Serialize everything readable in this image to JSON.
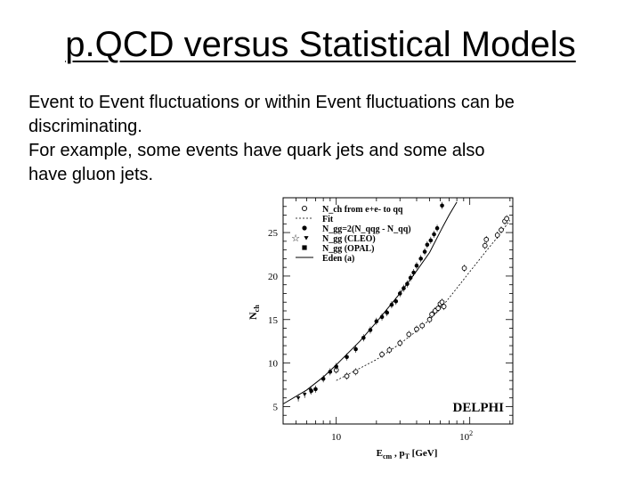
{
  "slide": {
    "title": "p.QCD versus Statistical Models",
    "bullets": [
      "Event to Event fluctuations or within Event fluctuations can be",
      "discriminating.",
      "For example, some events have quark jets and some also",
      "have gluon jets."
    ]
  },
  "chart_data": {
    "type": "scatter",
    "xlabel": "E_cm , p_T [GeV]",
    "ylabel": "N_ch",
    "xscale": "log",
    "xlim": [
      4,
      210
    ],
    "ylim": [
      3,
      29
    ],
    "x_ticks": [
      {
        "value": 10,
        "label": "10"
      }
    ],
    "x_tick_100": {
      "base": "10",
      "exp": "2"
    },
    "y_ticks": [
      {
        "value": 5,
        "label": "5"
      },
      {
        "value": 10,
        "label": "10"
      },
      {
        "value": 15,
        "label": "15"
      },
      {
        "value": 20,
        "label": "20"
      },
      {
        "value": 25,
        "label": "25"
      }
    ],
    "watermark": "DELPHI",
    "legend_position": "top-left",
    "legend": [
      {
        "marker": "open-circle",
        "label": "N_ch from e+e- to qq"
      },
      {
        "marker": "dashed",
        "label": "Fit"
      },
      {
        "marker": "filled-circle",
        "label": "N_gg=2(N_qqg - N_qq)"
      },
      {
        "marker": "star-triangle",
        "label": "N_gg (CLEO)"
      },
      {
        "marker": "filled-square",
        "label": "N_gg (OPAL)"
      },
      {
        "marker": "solid",
        "label": "Eden (a)"
      }
    ],
    "series": [
      {
        "marker": "open-circle",
        "points": [
          [
            10,
            9.2
          ],
          [
            12,
            8.5
          ],
          [
            14,
            9.0
          ],
          [
            22,
            11.0
          ],
          [
            25,
            11.5
          ],
          [
            30,
            12.3
          ],
          [
            35,
            13.3
          ],
          [
            40,
            13.9
          ],
          [
            44,
            14.3
          ],
          [
            50,
            15.0
          ],
          [
            52,
            15.6
          ],
          [
            55,
            16.0
          ],
          [
            58,
            16.3
          ],
          [
            60,
            16.8
          ],
          [
            62,
            17.0
          ],
          [
            64,
            16.5
          ],
          [
            91,
            20.9
          ],
          [
            130,
            23.5
          ],
          [
            133,
            24.2
          ],
          [
            161,
            24.7
          ],
          [
            172,
            25.3
          ],
          [
            183,
            26.3
          ],
          [
            189,
            26.6
          ]
        ]
      },
      {
        "marker": "filled-circle",
        "points": [
          [
            6.5,
            6.8
          ],
          [
            7,
            7.0
          ],
          [
            8,
            8.2
          ],
          [
            9,
            9.0
          ],
          [
            10,
            9.6
          ],
          [
            12,
            10.7
          ],
          [
            14,
            11.6
          ],
          [
            16,
            12.9
          ],
          [
            18,
            13.8
          ],
          [
            20,
            14.8
          ],
          [
            22,
            15.3
          ],
          [
            24,
            15.8
          ],
          [
            26,
            16.7
          ],
          [
            28,
            17.1
          ],
          [
            30,
            18.0
          ],
          [
            32,
            18.6
          ],
          [
            34,
            19.1
          ],
          [
            36,
            19.8
          ],
          [
            38,
            20.4
          ],
          [
            40,
            21.2
          ],
          [
            43,
            22.0
          ],
          [
            46,
            22.8
          ],
          [
            48,
            23.6
          ],
          [
            51,
            24.1
          ],
          [
            54,
            24.8
          ],
          [
            57,
            25.5
          ],
          [
            62,
            28.1
          ]
        ]
      },
      {
        "marker": "filled-triangle",
        "points": [
          [
            5.2,
            6.0
          ],
          [
            5.8,
            6.4
          ],
          [
            6.4,
            6.9
          ]
        ]
      }
    ],
    "lines": [
      {
        "style": "solid",
        "label": "Eden (a)",
        "points": [
          [
            4,
            5.3
          ],
          [
            6,
            6.9
          ],
          [
            8,
            8.4
          ],
          [
            10,
            9.8
          ],
          [
            15,
            12.5
          ],
          [
            20,
            14.7
          ],
          [
            30,
            18.0
          ],
          [
            40,
            20.6
          ],
          [
            50,
            22.7
          ],
          [
            62,
            25.5
          ],
          [
            70,
            27.0
          ],
          [
            80,
            28.5
          ]
        ]
      },
      {
        "style": "dashed",
        "label": "Fit",
        "points": [
          [
            10,
            8.0
          ],
          [
            15,
            9.4
          ],
          [
            20,
            10.4
          ],
          [
            30,
            12.2
          ],
          [
            40,
            13.7
          ],
          [
            50,
            15.0
          ],
          [
            60,
            16.2
          ],
          [
            80,
            18.6
          ],
          [
            100,
            20.5
          ],
          [
            130,
            22.7
          ],
          [
            160,
            24.4
          ],
          [
            200,
            26.4
          ]
        ]
      }
    ]
  }
}
